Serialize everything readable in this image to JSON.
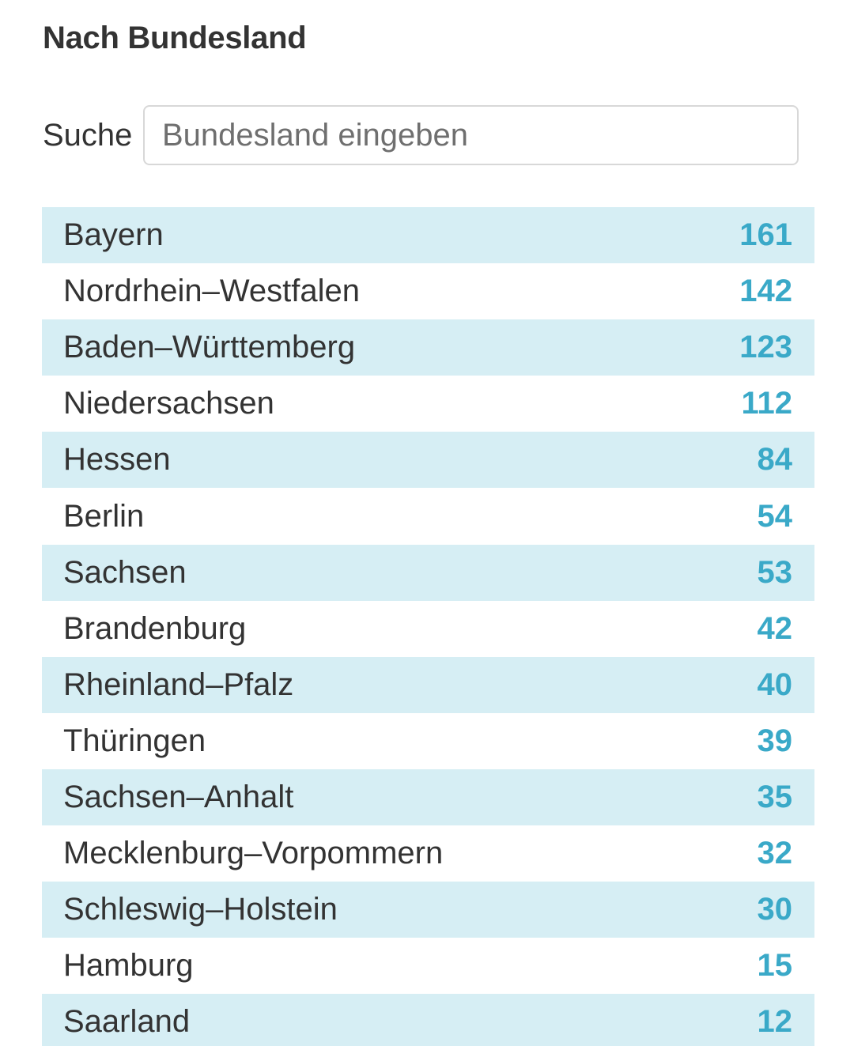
{
  "section": {
    "title": "Nach Bundesland"
  },
  "search": {
    "label": "Suche",
    "placeholder": "Bundesland eingeben",
    "value": ""
  },
  "colors": {
    "stripe": "#d6eef4",
    "count": "#3aa9c8",
    "text": "#333333"
  },
  "table": {
    "rows": [
      {
        "name": "Bayern",
        "count": "161"
      },
      {
        "name": "Nordrhein–Westfalen",
        "count": "142"
      },
      {
        "name": "Baden–Württemberg",
        "count": "123"
      },
      {
        "name": "Niedersachsen",
        "count": "112"
      },
      {
        "name": "Hessen",
        "count": "84"
      },
      {
        "name": "Berlin",
        "count": "54"
      },
      {
        "name": "Sachsen",
        "count": "53"
      },
      {
        "name": "Brandenburg",
        "count": "42"
      },
      {
        "name": "Rheinland–Pfalz",
        "count": "40"
      },
      {
        "name": "Thüringen",
        "count": "39"
      },
      {
        "name": "Sachsen–Anhalt",
        "count": "35"
      },
      {
        "name": "Mecklenburg–Vorpommern",
        "count": "32"
      },
      {
        "name": "Schleswig–Holstein",
        "count": "30"
      },
      {
        "name": "Hamburg",
        "count": "15"
      },
      {
        "name": "Saarland",
        "count": "12"
      }
    ]
  }
}
